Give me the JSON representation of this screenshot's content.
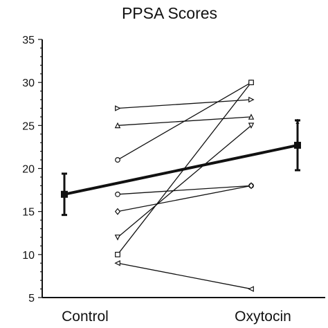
{
  "chart_data": {
    "type": "line",
    "title": "PPSA Scores",
    "categories": [
      "Control",
      "Oxytocin"
    ],
    "ylim": [
      5,
      35
    ],
    "yticks": [
      5,
      10,
      15,
      20,
      25,
      30,
      35
    ],
    "ytick_labels": [
      "5",
      "10",
      "15",
      "20",
      "25",
      "30",
      "35"
    ],
    "grid": false,
    "individual_pairs": [
      {
        "control": 27,
        "oxytocin": 28,
        "marker": "triangle-right"
      },
      {
        "control": 25,
        "oxytocin": 26,
        "marker": "triangle-up"
      },
      {
        "control": 21,
        "oxytocin": 30,
        "marker": "circle"
      },
      {
        "control": 17,
        "oxytocin": 18,
        "marker": "circle"
      },
      {
        "control": 15,
        "oxytocin": 18,
        "marker": "diamond"
      },
      {
        "control": 12,
        "oxytocin": 25,
        "marker": "triangle-down"
      },
      {
        "control": 10,
        "oxytocin": 30,
        "marker": "square"
      },
      {
        "control": 9,
        "oxytocin": 6,
        "marker": "triangle-left"
      }
    ],
    "mean": {
      "values": [
        17.0,
        22.7
      ],
      "error": [
        2.4,
        2.9
      ]
    },
    "annotations": [
      {
        "category": "Oxytocin",
        "text": "*"
      }
    ],
    "colors": {
      "line": "#111111",
      "marker_fill": "#ffffff"
    }
  }
}
